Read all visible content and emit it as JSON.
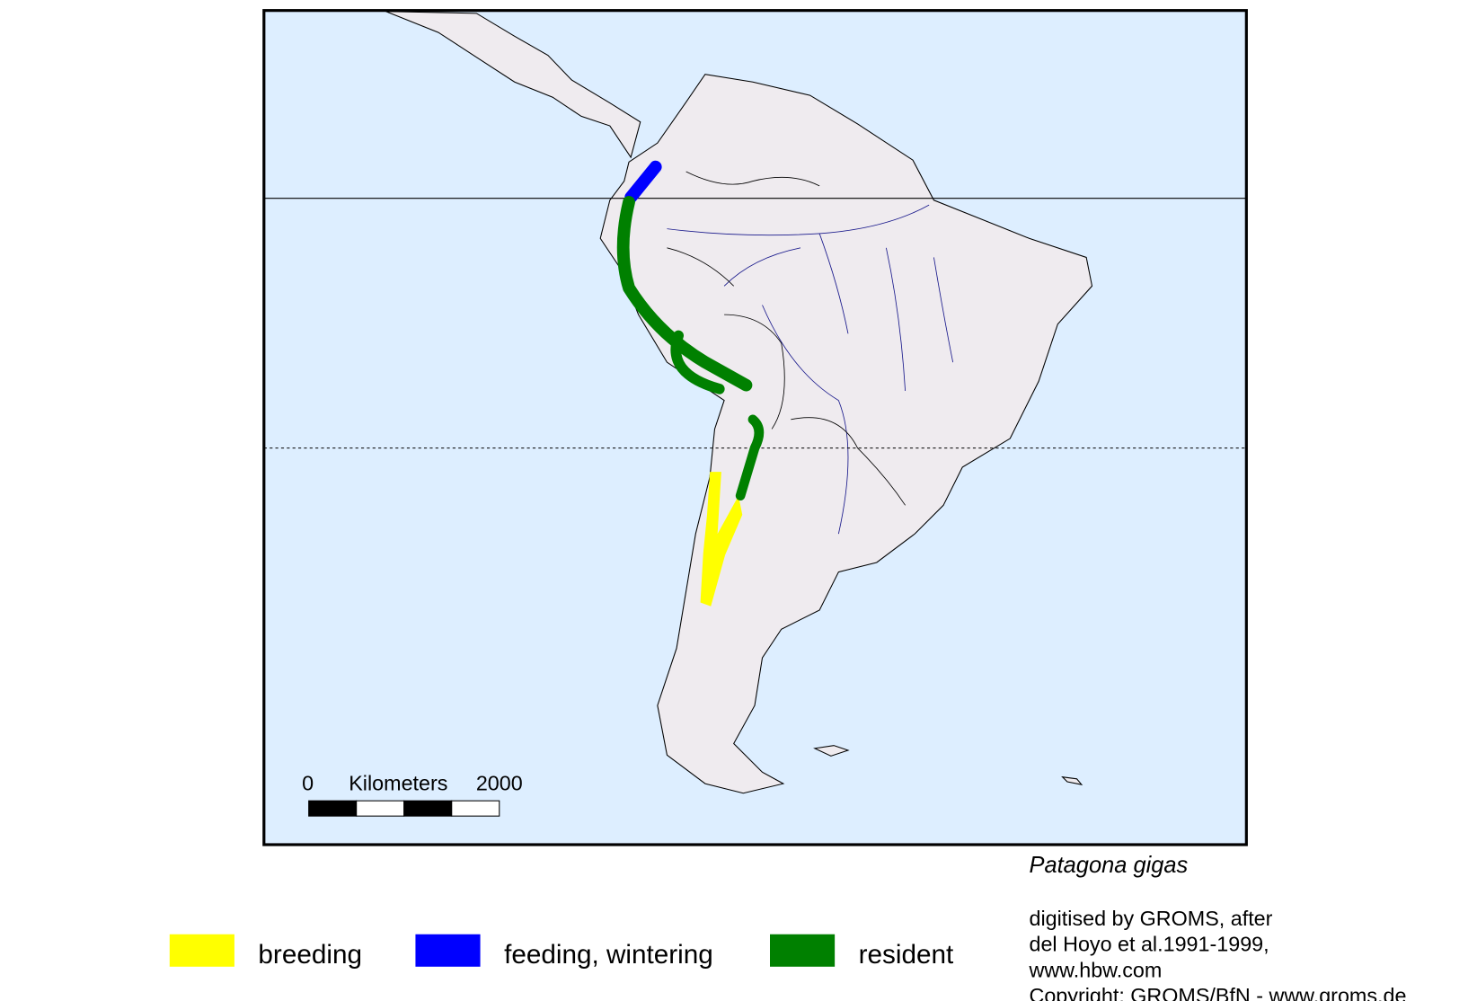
{
  "map": {
    "scale_bar": {
      "start": "0",
      "unit": "Kilometers",
      "end": "2000"
    },
    "species": "Patagona gigas",
    "legend": [
      {
        "label": "breeding",
        "color": "#ffff00"
      },
      {
        "label": "feeding, wintering",
        "color": "#0000ff"
      },
      {
        "label": "resident",
        "color": "#008000"
      }
    ],
    "credits": [
      "digitised by GROMS, after",
      "del Hoyo et al.1991-1999,",
      "www.hbw.com",
      "Copyright: GROMS/BfN - www.groms.de"
    ]
  }
}
